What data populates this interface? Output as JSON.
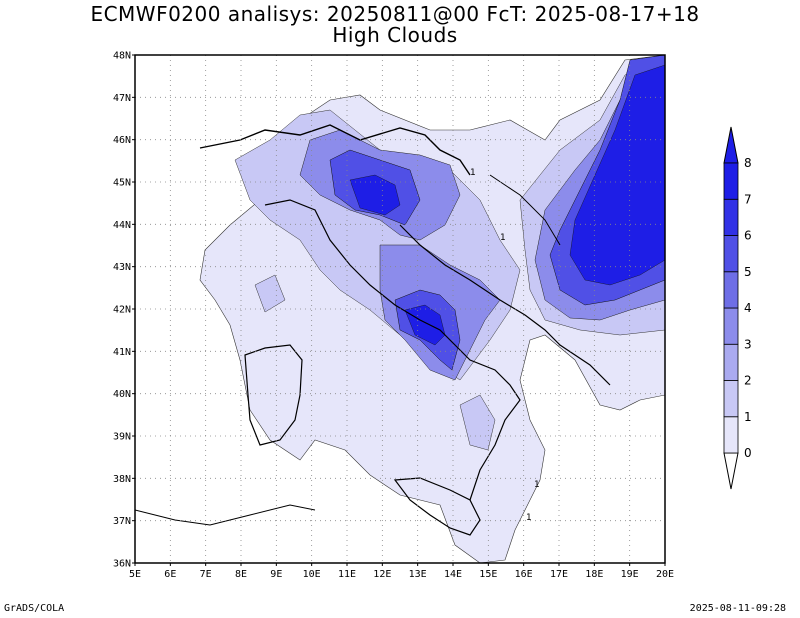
{
  "title": {
    "line1": "ECMWF0200 analisys: 20250811@00 FcT: 2025-08-17+18",
    "line2": "High Clouds"
  },
  "map": {
    "lat_labels": [
      "36N",
      "37N",
      "38N",
      "39N",
      "40N",
      "41N",
      "42N",
      "43N",
      "44N",
      "45N",
      "46N",
      "47N",
      "48N"
    ],
    "lon_labels": [
      "5E",
      "6E",
      "7E",
      "8E",
      "9E",
      "10E",
      "11E",
      "12E",
      "13E",
      "14E",
      "15E",
      "16E",
      "17E",
      "18E",
      "19E",
      "20E"
    ],
    "grid": "dotted",
    "contour_label": "1"
  },
  "legend": {
    "levels": [
      "0",
      "1",
      "2",
      "3",
      "4",
      "5",
      "6",
      "7",
      "8"
    ],
    "colors": [
      "#ffffff",
      "#e6e6fa",
      "#c8c8f5",
      "#aaaaf0",
      "#8c8ceb",
      "#6e6ee6",
      "#5050e6",
      "#3232e6",
      "#1e1ee6"
    ]
  },
  "footer": {
    "left": "GrADS/COLA",
    "right": "2025-08-11-09:28"
  }
}
